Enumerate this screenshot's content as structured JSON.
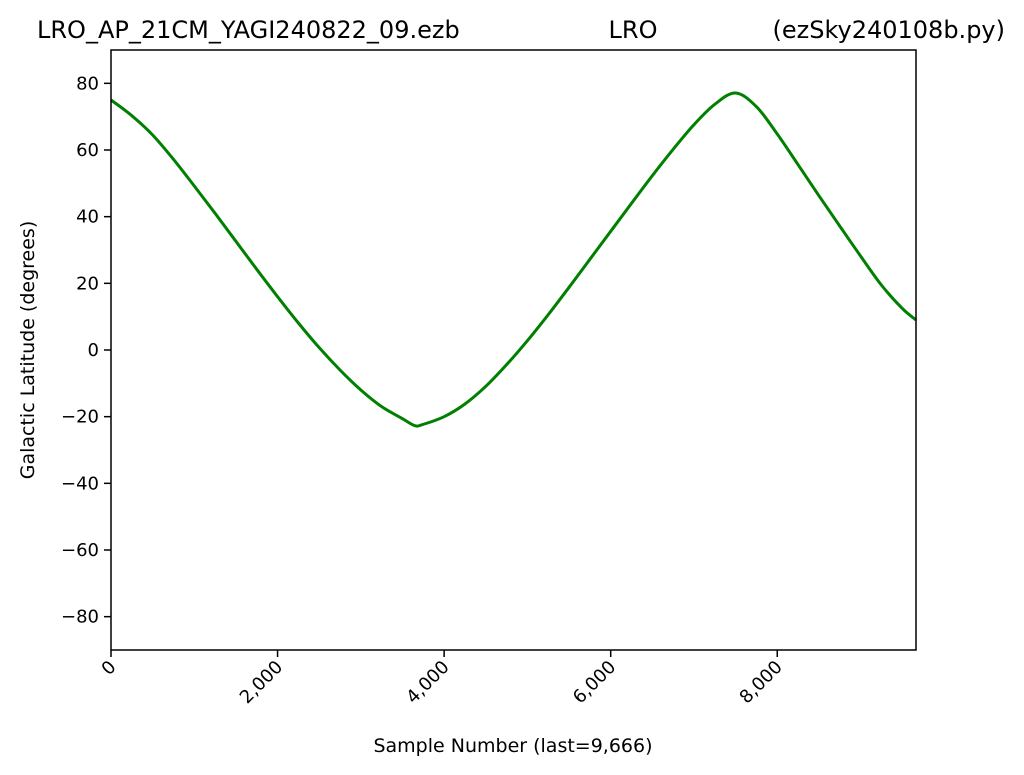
{
  "figure": {
    "title_left": "LRO_AP_21CM_YAGI240822_09.ezb",
    "title_center": "LRO",
    "title_right": "(ezSky240108b.py)"
  },
  "chart_data": {
    "type": "line",
    "title": "LRO_AP_21CM_YAGI240822_09.ezb            LRO            (ezSky240108b.py)",
    "xlabel": "Sample Number (last=9,666)",
    "ylabel": "Galactic Latitude (degrees)",
    "xlim": [
      0,
      9666
    ],
    "ylim": [
      -90,
      90
    ],
    "xticks": [
      0,
      2000,
      4000,
      6000,
      8000
    ],
    "xtick_labels": [
      "0",
      "2,000",
      "4,000",
      "6,000",
      "8,000"
    ],
    "xtick_rotation": 45,
    "yticks": [
      -80,
      -60,
      -40,
      -20,
      0,
      20,
      40,
      60,
      80
    ],
    "ytick_labels": [
      "−80",
      "−60",
      "−40",
      "−20",
      "0",
      "20",
      "40",
      "60",
      "80"
    ],
    "grid": false,
    "legend": "none",
    "colors": {
      "line": "#008000",
      "axes": "#000000",
      "background": "#ffffff"
    },
    "series": [
      {
        "color": "#008000",
        "x": [
          0,
          250,
          500,
          750,
          1000,
          1250,
          1500,
          1750,
          2000,
          2250,
          2500,
          2750,
          3000,
          3250,
          3500,
          3650,
          3750,
          4000,
          4250,
          4500,
          4750,
          5000,
          5250,
          5500,
          5750,
          6000,
          6250,
          6500,
          6750,
          7000,
          7250,
          7500,
          7750,
          8000,
          8250,
          8500,
          8750,
          9000,
          9250,
          9500,
          9666
        ],
        "y": [
          75,
          70.3,
          64.5,
          57.2,
          49.2,
          41,
          32.6,
          24.2,
          16,
          8.1,
          0.7,
          -6,
          -12,
          -17,
          -20.6,
          -22.7,
          -22.3,
          -20,
          -16.2,
          -10.9,
          -4.4,
          2.8,
          10.6,
          18.8,
          27.2,
          35.6,
          44,
          52.3,
          60.2,
          67.6,
          73.7,
          77.1,
          73,
          64.8,
          55.6,
          46.3,
          37.2,
          28.2,
          19.5,
          12.5,
          9
        ]
      }
    ]
  }
}
